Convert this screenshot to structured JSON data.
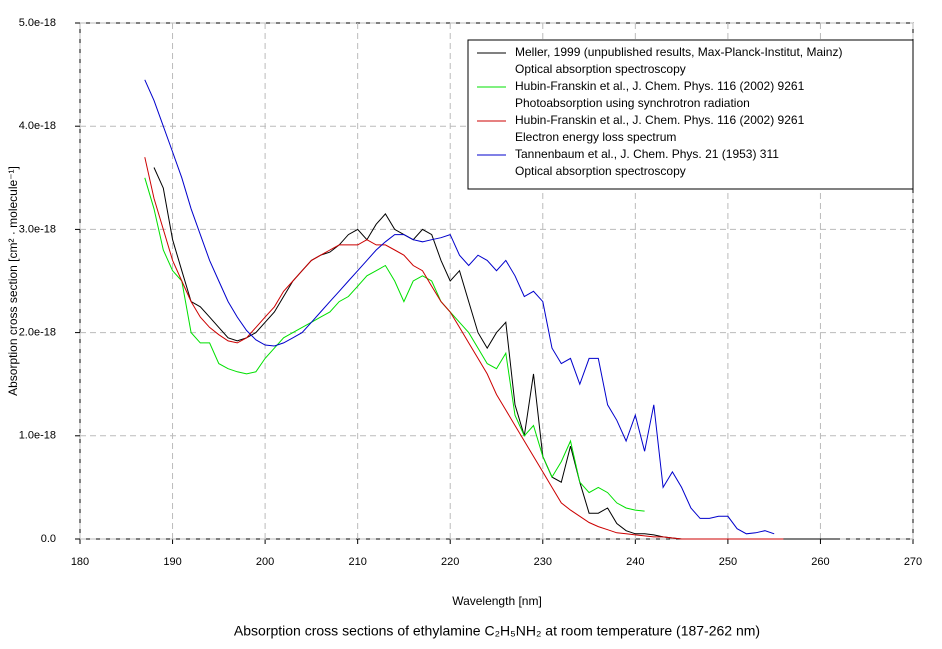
{
  "chart_data": {
    "type": "line",
    "title": "Absorption cross sections of ethylamine C₂H₅NH₂ at room temperature (187-262 nm)",
    "x_label": "Wavelength [nm]",
    "y_label": "Absorption cross section [cm² · molecule⁻¹]",
    "x": [
      187,
      188,
      189,
      190,
      191,
      192,
      193,
      194,
      195,
      196,
      197,
      198,
      199,
      200,
      201,
      202,
      203,
      204,
      205,
      206,
      207,
      208,
      209,
      210,
      211,
      212,
      213,
      214,
      215,
      216,
      217,
      218,
      219,
      220,
      221,
      222,
      223,
      224,
      225,
      226,
      227,
      228,
      229,
      230,
      231,
      232,
      233,
      234,
      235,
      236,
      237,
      238,
      239,
      240,
      241,
      242,
      243,
      244,
      245,
      246,
      247,
      248,
      249,
      250,
      251,
      252,
      253,
      254,
      255,
      256,
      257,
      258,
      259,
      260,
      261,
      262
    ],
    "xlim": [
      180,
      270
    ],
    "xticks": [
      180,
      190,
      200,
      210,
      220,
      230,
      240,
      250,
      260,
      270
    ],
    "ylim": [
      0,
      5e-18
    ],
    "yticks": [
      {
        "value": 0,
        "label": "0.0"
      },
      {
        "value": 1e-18,
        "label": "1.0e-18"
      },
      {
        "value": 2e-18,
        "label": "2.0e-18"
      },
      {
        "value": 3e-18,
        "label": "3.0e-18"
      },
      {
        "value": 4e-18,
        "label": "4.0e-18"
      },
      {
        "value": 5e-18,
        "label": "5.0e-18"
      }
    ],
    "grid": true,
    "legend": "upper right",
    "series": [
      {
        "name": "Meller, 1999 (unpublished results, Max-Planck-Institut, Mainz)",
        "description": "Optical absorption spectroscopy",
        "color": "#000000",
        "values": [
          null,
          3.6e-18,
          3.4e-18,
          2.9e-18,
          2.6e-18,
          2.3e-18,
          2.25e-18,
          2.15e-18,
          2.05e-18,
          1.95e-18,
          1.92e-18,
          1.95e-18,
          2e-18,
          2.1e-18,
          2.2e-18,
          2.35e-18,
          2.5e-18,
          2.6e-18,
          2.7e-18,
          2.75e-18,
          2.78e-18,
          2.85e-18,
          2.95e-18,
          3e-18,
          2.9e-18,
          3.05e-18,
          3.15e-18,
          3e-18,
          2.95e-18,
          2.9e-18,
          3e-18,
          2.95e-18,
          2.7e-18,
          2.5e-18,
          2.6e-18,
          2.3e-18,
          2e-18,
          1.85e-18,
          2e-18,
          2.1e-18,
          1.3e-18,
          1e-18,
          1.6e-18,
          8e-19,
          6e-19,
          5.5e-19,
          9e-19,
          5.5e-19,
          2.5e-19,
          2.5e-19,
          3e-19,
          1.5e-19,
          8e-20,
          5e-20,
          5e-20,
          4e-20,
          2e-20,
          1e-20,
          0,
          0,
          0,
          0,
          0,
          0,
          0,
          0,
          0,
          0,
          0,
          0,
          0,
          0,
          0,
          0,
          0,
          0
        ]
      },
      {
        "name": "Hubin-Franskin et al., J. Chem. Phys. 116 (2002) 9261",
        "description": "Photoabsorption using synchrotron radiation",
        "color": "#00e000",
        "values": [
          3.5e-18,
          3.2e-18,
          2.8e-18,
          2.6e-18,
          2.5e-18,
          2e-18,
          1.9e-18,
          1.9e-18,
          1.7e-18,
          1.65e-18,
          1.62e-18,
          1.6e-18,
          1.62e-18,
          1.75e-18,
          1.85e-18,
          1.95e-18,
          2e-18,
          2.05e-18,
          2.1e-18,
          2.15e-18,
          2.2e-18,
          2.3e-18,
          2.35e-18,
          2.45e-18,
          2.55e-18,
          2.6e-18,
          2.65e-18,
          2.5e-18,
          2.3e-18,
          2.5e-18,
          2.55e-18,
          2.5e-18,
          2.3e-18,
          2.2e-18,
          2.1e-18,
          2e-18,
          1.85e-18,
          1.7e-18,
          1.65e-18,
          1.8e-18,
          1.2e-18,
          1e-18,
          1.1e-18,
          8e-19,
          6e-19,
          7.5e-19,
          9.5e-19,
          5.5e-19,
          4.5e-19,
          5e-19,
          4.5e-19,
          3.5e-19,
          3e-19,
          2.8e-19,
          2.7e-19,
          null,
          null,
          null,
          null,
          null,
          null,
          null,
          null,
          null,
          null,
          null,
          null,
          null,
          null,
          null,
          null,
          null,
          null,
          null,
          null,
          null
        ]
      },
      {
        "name": "Hubin-Franskin et al., J. Chem. Phys. 116 (2002) 9261",
        "description": "Electron energy loss spectrum",
        "color": "#cc0000",
        "values": [
          3.7e-18,
          3.3e-18,
          3e-18,
          2.7e-18,
          2.5e-18,
          2.3e-18,
          2.15e-18,
          2.05e-18,
          1.98e-18,
          1.92e-18,
          1.9e-18,
          1.95e-18,
          2.05e-18,
          2.15e-18,
          2.25e-18,
          2.4e-18,
          2.5e-18,
          2.6e-18,
          2.7e-18,
          2.75e-18,
          2.8e-18,
          2.85e-18,
          2.85e-18,
          2.85e-18,
          2.9e-18,
          2.85e-18,
          2.85e-18,
          2.8e-18,
          2.75e-18,
          2.65e-18,
          2.6e-18,
          2.45e-18,
          2.3e-18,
          2.2e-18,
          2.05e-18,
          1.9e-18,
          1.75e-18,
          1.6e-18,
          1.4e-18,
          1.25e-18,
          1.1e-18,
          9.5e-19,
          8e-19,
          6.5e-19,
          5e-19,
          3.5e-19,
          2.8e-19,
          2.2e-19,
          1.6e-19,
          1.2e-19,
          9e-20,
          6e-20,
          5e-20,
          4e-20,
          3e-20,
          2e-20,
          2e-20,
          1e-20,
          0,
          0,
          0,
          0,
          0,
          0,
          0,
          0,
          0,
          0,
          0,
          0,
          null,
          null,
          null,
          null,
          null,
          null
        ]
      },
      {
        "name": "Tannenbaum et al., J. Chem. Phys. 21 (1953) 311",
        "description": "Optical absorption spectroscopy",
        "color": "#0000cc",
        "values": [
          4.45e-18,
          4.25e-18,
          4e-18,
          3.75e-18,
          3.5e-18,
          3.2e-18,
          2.95e-18,
          2.7e-18,
          2.5e-18,
          2.3e-18,
          2.15e-18,
          2.02e-18,
          1.93e-18,
          1.88e-18,
          1.87e-18,
          1.9e-18,
          1.95e-18,
          2e-18,
          2.1e-18,
          2.2e-18,
          2.3e-18,
          2.4e-18,
          2.5e-18,
          2.6e-18,
          2.7e-18,
          2.8e-18,
          2.88e-18,
          2.95e-18,
          2.95e-18,
          2.9e-18,
          2.88e-18,
          2.9e-18,
          2.92e-18,
          2.95e-18,
          2.75e-18,
          2.65e-18,
          2.75e-18,
          2.7e-18,
          2.6e-18,
          2.7e-18,
          2.55e-18,
          2.35e-18,
          2.4e-18,
          2.3e-18,
          1.85e-18,
          1.7e-18,
          1.75e-18,
          1.5e-18,
          1.75e-18,
          1.75e-18,
          1.3e-18,
          1.15e-18,
          9.5e-19,
          1.2e-18,
          8.5e-19,
          1.3e-18,
          5e-19,
          6.5e-19,
          5e-19,
          3e-19,
          2e-19,
          2e-19,
          2.2e-19,
          2.2e-19,
          1e-19,
          5e-20,
          6e-20,
          8e-20,
          5e-20,
          null,
          null,
          null,
          null,
          null,
          null,
          null
        ]
      }
    ]
  }
}
